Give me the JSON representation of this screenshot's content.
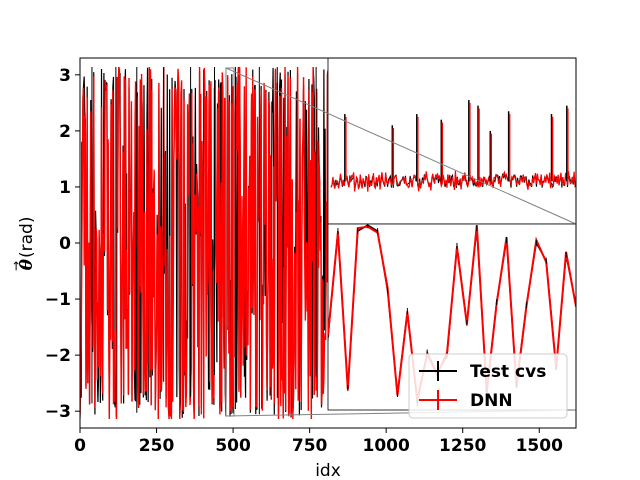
{
  "chart_data": {
    "type": "line",
    "xlabel": "idx",
    "ylabel": "(rad)",
    "ylabel_symbol": "θ",
    "xlim": [
      0,
      1620
    ],
    "ylim": [
      -3.3,
      3.3
    ],
    "xticks": [
      0,
      250,
      500,
      750,
      1000,
      1250,
      1500
    ],
    "yticks": [
      -3,
      -2,
      -1,
      0,
      1,
      2,
      3
    ],
    "xtick_labels": [
      "0",
      "250",
      "500",
      "750",
      "1000",
      "1250",
      "1500"
    ],
    "ytick_labels": [
      "−3",
      "−2",
      "−1",
      "0",
      "1",
      "2",
      "3"
    ],
    "series": [
      {
        "name": "Test cvs",
        "color": "#000000",
        "style": "errorbar-line"
      },
      {
        "name": "DNN",
        "color": "#ff0000",
        "style": "errorbar-line"
      }
    ],
    "main_pattern": {
      "x_end": 820,
      "value_range": [
        -3.14,
        3.14
      ]
    },
    "inset_upper": {
      "x_range": [
        820,
        1620
      ],
      "baseline": 1.1,
      "noise": 0.12,
      "spikes": [
        {
          "x": 865,
          "y": 2.3
        },
        {
          "x": 1020,
          "y": 2.1
        },
        {
          "x": 1100,
          "y": 2.3
        },
        {
          "x": 1180,
          "y": 2.2
        },
        {
          "x": 1270,
          "y": 2.55
        },
        {
          "x": 1300,
          "y": 2.45
        },
        {
          "x": 1340,
          "y": 2.0
        },
        {
          "x": 1400,
          "y": 2.35
        },
        {
          "x": 1540,
          "y": 2.3
        },
        {
          "x": 1590,
          "y": 2.45
        }
      ]
    },
    "inset_lower": {
      "zoom_window": {
        "x": [
          480,
          500
        ],
        "y": [
          -3.14,
          3.14
        ]
      },
      "values": [
        -0.7,
        2.9,
        -2.4,
        2.9,
        3.1,
        2.9,
        0.9,
        -2.6,
        0.2,
        -2.9,
        -1.2,
        -1.9,
        -1.3,
        2.4,
        -0.2,
        3.0,
        -2.5,
        0.5,
        2.6,
        -2.3,
        0.4,
        2.5,
        1.9,
        -1.7,
        2.1,
        0.4
      ]
    },
    "legend": {
      "position": "lower-right"
    }
  }
}
